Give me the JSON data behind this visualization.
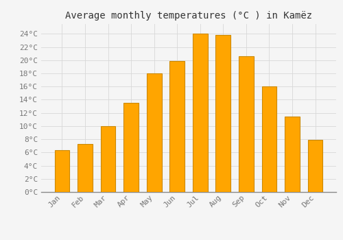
{
  "title": "Average monthly temperatures (°C ) in Kamëz",
  "months": [
    "Jan",
    "Feb",
    "Mar",
    "Apr",
    "May",
    "Jun",
    "Jul",
    "Aug",
    "Sep",
    "Oct",
    "Nov",
    "Dec"
  ],
  "values": [
    6.4,
    7.3,
    10.0,
    13.5,
    18.0,
    19.9,
    24.0,
    23.8,
    20.6,
    16.0,
    11.5,
    7.9
  ],
  "bar_color": "#FFA500",
  "bar_edge_color": "#CC8800",
  "background_color": "#f5f5f5",
  "grid_color": "#d8d8d8",
  "yticks": [
    0,
    2,
    4,
    6,
    8,
    10,
    12,
    14,
    16,
    18,
    20,
    22,
    24
  ],
  "ylim": [
    0,
    25.5
  ],
  "title_fontsize": 10,
  "tick_fontsize": 8,
  "tick_color": "#777777",
  "font_family": "monospace"
}
